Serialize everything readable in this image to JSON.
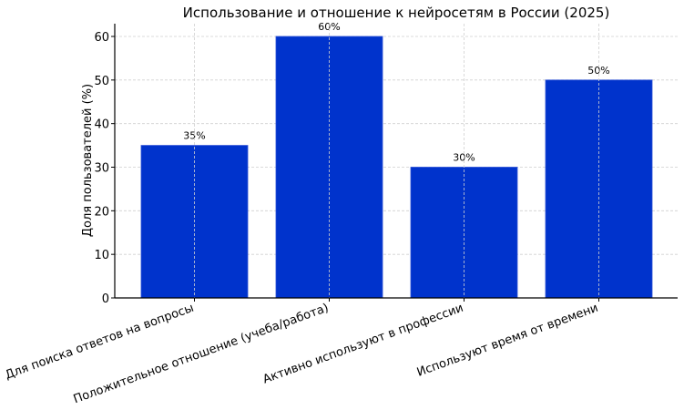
{
  "chart_data": {
    "type": "bar",
    "title": "Использование и отношение к нейросетям в России (2025)",
    "xlabel": "",
    "ylabel": "Доля пользователей (%)",
    "categories": [
      "Для поиска ответов на вопросы",
      "Положительное отношение (учеба/работа)",
      "Активно используют в профессии",
      "Используют время от времени"
    ],
    "values": [
      35,
      60,
      30,
      50
    ],
    "value_labels": [
      "35%",
      "60%",
      "30%",
      "50%"
    ],
    "ylim": [
      0,
      63
    ],
    "yticks": [
      0,
      10,
      20,
      30,
      40,
      50,
      60
    ],
    "grid": true,
    "bar_color": "#0033cc",
    "legend": null
  }
}
